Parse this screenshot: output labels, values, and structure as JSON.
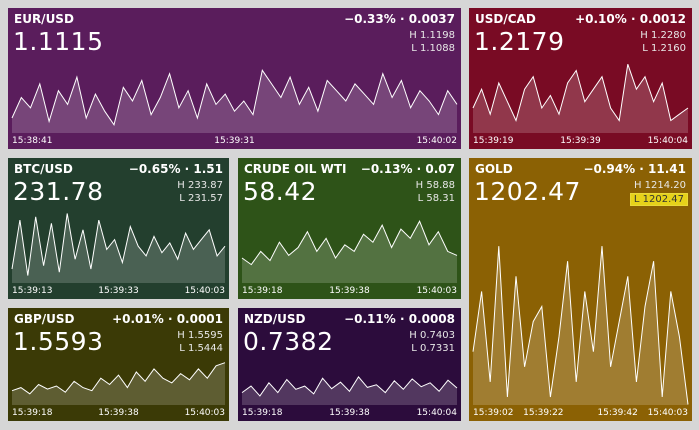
{
  "tiles": [
    {
      "symbol": "EUR/USD",
      "change": "−0.33% · 0.0037",
      "price": "1.1115",
      "high": "H 1.1198",
      "low": "L 1.1088",
      "times": [
        "15:38:41",
        "15:39:31",
        "15:40:02"
      ],
      "color": "#5a1d5c",
      "chart": {
        "type": "line",
        "ylim": [
          1.1088,
          1.1198
        ],
        "values": [
          1.111,
          1.114,
          1.1125,
          1.116,
          1.1105,
          1.115,
          1.113,
          1.117,
          1.111,
          1.1145,
          1.112,
          1.11,
          1.1155,
          1.1135,
          1.1165,
          1.1115,
          1.114,
          1.1175,
          1.1125,
          1.115,
          1.111,
          1.116,
          1.113,
          1.1145,
          1.112,
          1.1135,
          1.1115,
          1.118,
          1.116,
          1.114,
          1.117,
          1.113,
          1.1155,
          1.112,
          1.1165,
          1.115,
          1.1135,
          1.116,
          1.1145,
          1.113,
          1.1175,
          1.114,
          1.1165,
          1.1125,
          1.115,
          1.1135,
          1.1115,
          1.115,
          1.113
        ]
      }
    },
    {
      "symbol": "USD/CAD",
      "change": "+0.10% · 0.0012",
      "price": "1.2179",
      "high": "H 1.2280",
      "low": "L 1.2160",
      "times": [
        "15:39:19",
        "15:39:39",
        "15:40:04"
      ],
      "color": "#790b24",
      "chart": {
        "type": "line",
        "ylim": [
          1.216,
          1.228
        ],
        "values": [
          1.22,
          1.223,
          1.219,
          1.224,
          1.221,
          1.218,
          1.223,
          1.225,
          1.22,
          1.222,
          1.219,
          1.224,
          1.226,
          1.221,
          1.223,
          1.225,
          1.22,
          1.218,
          1.227,
          1.223,
          1.225,
          1.221,
          1.224,
          1.218,
          1.219,
          1.22
        ]
      }
    },
    {
      "symbol": "BTC/USD",
      "change": "−0.65% · 1.51",
      "price": "231.78",
      "high": "H 233.87",
      "low": "L 231.57",
      "times": [
        "15:39:13",
        "15:39:33",
        "15:40:03"
      ],
      "color": "#233f2e",
      "chart": {
        "type": "line",
        "ylim": [
          231.57,
          233.87
        ],
        "values": [
          232.0,
          233.5,
          231.8,
          233.6,
          232.1,
          233.4,
          231.9,
          233.7,
          232.3,
          233.2,
          232.0,
          233.5,
          232.6,
          232.9,
          232.2,
          233.3,
          232.7,
          232.4,
          233.0,
          232.5,
          232.8,
          232.3,
          233.1,
          232.6,
          232.9,
          233.2,
          232.4,
          232.7
        ]
      }
    },
    {
      "symbol": "CRUDE OIL WTI",
      "change": "−0.13% · 0.07",
      "price": "58.42",
      "high": "H 58.88",
      "low": "L 58.31",
      "times": [
        "15:39:18",
        "15:39:38",
        "15:40:03"
      ],
      "color": "#2e5318",
      "chart": {
        "type": "line",
        "ylim": [
          58.31,
          58.88
        ],
        "values": [
          58.5,
          58.45,
          58.55,
          58.48,
          58.62,
          58.52,
          58.58,
          58.7,
          58.55,
          58.65,
          58.5,
          58.6,
          58.55,
          58.68,
          58.62,
          58.75,
          58.58,
          58.72,
          58.65,
          58.78,
          58.6,
          58.7,
          58.55,
          58.52
        ]
      }
    },
    {
      "symbol": "GOLD",
      "change": "−0.94% · 11.41",
      "price": "1202.47",
      "high": "H 1214.20",
      "low": "L 1202.47",
      "times": [
        "15:39:02",
        "15:39:22",
        "15:39:42",
        "15:40:03"
      ],
      "color": "#8b6104",
      "chart": {
        "type": "line",
        "ylim": [
          1202.47,
          1214.2
        ],
        "values": [
          1206,
          1210,
          1204,
          1213,
          1203,
          1211,
          1205,
          1208,
          1209,
          1203,
          1207,
          1212,
          1204,
          1210,
          1206,
          1213,
          1205,
          1208,
          1211,
          1204,
          1209,
          1212,
          1203,
          1210,
          1207,
          1202.5
        ]
      }
    },
    {
      "symbol": "GBP/USD",
      "change": "+0.01% · 0.0001",
      "price": "1.5593",
      "high": "H 1.5595",
      "low": "L 1.5444",
      "times": [
        "15:39:18",
        "15:39:38",
        "15:40:03"
      ],
      "color": "#3b3a06",
      "chart": {
        "type": "line",
        "ylim": [
          1.5444,
          1.5595
        ],
        "values": [
          1.549,
          1.55,
          1.548,
          1.551,
          1.5495,
          1.5505,
          1.5485,
          1.552,
          1.55,
          1.549,
          1.553,
          1.551,
          1.554,
          1.55,
          1.555,
          1.552,
          1.556,
          1.553,
          1.5515,
          1.5545,
          1.5525,
          1.556,
          1.553,
          1.557,
          1.558
        ]
      }
    },
    {
      "symbol": "NZD/USD",
      "change": "−0.11% · 0.0008",
      "price": "0.7382",
      "high": "H 0.7403",
      "low": "L 0.7331",
      "times": [
        "15:39:18",
        "15:39:38",
        "15:40:04"
      ],
      "color": "#2c0c3c",
      "chart": {
        "type": "line",
        "ylim": [
          0.7331,
          0.7403
        ],
        "values": [
          0.735,
          0.736,
          0.7345,
          0.7365,
          0.735,
          0.737,
          0.7355,
          0.736,
          0.7348,
          0.7372,
          0.7356,
          0.7366,
          0.7352,
          0.7374,
          0.7358,
          0.7362,
          0.735,
          0.7368,
          0.7355,
          0.7371,
          0.7359,
          0.7365,
          0.7352,
          0.7369,
          0.7357
        ]
      }
    }
  ]
}
